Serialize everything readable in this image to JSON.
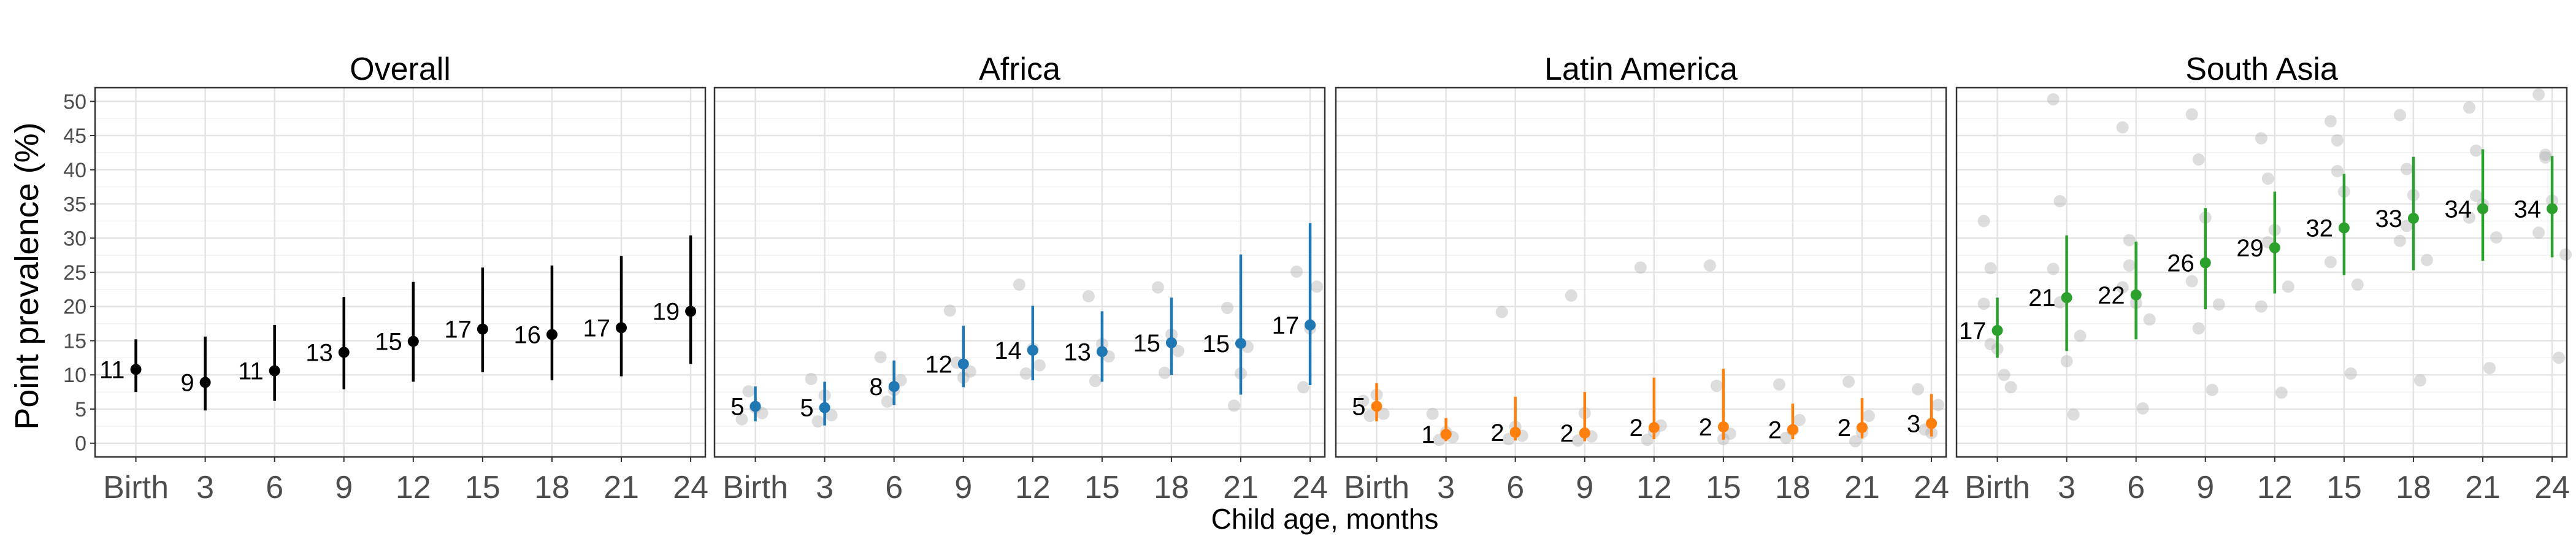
{
  "chart_data": {
    "type": "scatter",
    "ylabel": "Point prevalence (%)",
    "xlabel": "Child age, months",
    "ylim": [
      -2,
      52
    ],
    "yticks": [
      0,
      5,
      10,
      15,
      20,
      25,
      30,
      35,
      40,
      45,
      50
    ],
    "x_categories": [
      "Birth",
      "3",
      "6",
      "9",
      "12",
      "15",
      "18",
      "21",
      "24"
    ],
    "grid": true,
    "panels": [
      {
        "title": "Overall",
        "color": "#000000",
        "points": [
          {
            "x": "Birth",
            "y": 10.8,
            "lo": 7.5,
            "hi": 15.2,
            "label": "11"
          },
          {
            "x": "3",
            "y": 8.9,
            "lo": 4.8,
            "hi": 15.6,
            "label": "9"
          },
          {
            "x": "6",
            "y": 10.6,
            "lo": 6.2,
            "hi": 17.3,
            "label": "11"
          },
          {
            "x": "9",
            "y": 13.3,
            "lo": 7.9,
            "hi": 21.4,
            "label": "13"
          },
          {
            "x": "12",
            "y": 14.9,
            "lo": 9.0,
            "hi": 23.6,
            "label": "15"
          },
          {
            "x": "15",
            "y": 16.7,
            "lo": 10.4,
            "hi": 25.7,
            "label": "17"
          },
          {
            "x": "18",
            "y": 15.9,
            "lo": 9.2,
            "hi": 26.0,
            "label": "16"
          },
          {
            "x": "21",
            "y": 16.9,
            "lo": 9.8,
            "hi": 27.4,
            "label": "17"
          },
          {
            "x": "24",
            "y": 19.3,
            "lo": 11.6,
            "hi": 30.4,
            "label": "19"
          }
        ],
        "studies": []
      },
      {
        "title": "Africa",
        "color": "#1f77b4",
        "points": [
          {
            "x": "Birth",
            "y": 5.4,
            "lo": 3.2,
            "hi": 8.3,
            "label": "5"
          },
          {
            "x": "3",
            "y": 5.2,
            "lo": 2.6,
            "hi": 9.0,
            "label": "5"
          },
          {
            "x": "6",
            "y": 8.3,
            "lo": 5.6,
            "hi": 12.1,
            "label": "8"
          },
          {
            "x": "9",
            "y": 11.6,
            "lo": 8.2,
            "hi": 17.2,
            "label": "12"
          },
          {
            "x": "12",
            "y": 13.6,
            "lo": 9.2,
            "hi": 20.1,
            "label": "14"
          },
          {
            "x": "15",
            "y": 13.4,
            "lo": 9.0,
            "hi": 19.3,
            "label": "13"
          },
          {
            "x": "18",
            "y": 14.7,
            "lo": 10.0,
            "hi": 21.3,
            "label": "15"
          },
          {
            "x": "21",
            "y": 14.6,
            "lo": 7.1,
            "hi": 27.6,
            "label": "15"
          },
          {
            "x": "24",
            "y": 17.3,
            "lo": 8.5,
            "hi": 32.2,
            "label": "17"
          }
        ],
        "studies": [
          [
            3.5,
            7.6,
            5.2,
            4.4
          ],
          [
            9.4,
            3.2,
            7.0,
            4.1
          ],
          [
            12.6,
            6.1,
            7.8,
            9.2
          ],
          [
            19.4,
            11.8,
            9.6,
            10.5
          ],
          [
            23.2,
            10.2,
            13.8,
            11.4
          ],
          [
            21.5,
            9.1,
            14.5,
            12.7
          ],
          [
            22.8,
            10.3,
            15.9,
            13.5
          ],
          [
            19.8,
            5.5,
            10.2,
            14.1
          ],
          [
            25.1,
            8.2,
            16.8,
            22.9
          ]
        ]
      },
      {
        "title": "Latin America",
        "color": "#ff7f0e",
        "points": [
          {
            "x": "Birth",
            "y": 5.4,
            "lo": 3.2,
            "hi": 8.8,
            "label": "5"
          },
          {
            "x": "3",
            "y": 1.3,
            "lo": 0.3,
            "hi": 3.7,
            "label": "1"
          },
          {
            "x": "6",
            "y": 1.6,
            "lo": 0.4,
            "hi": 6.8,
            "label": "2"
          },
          {
            "x": "9",
            "y": 1.5,
            "lo": 0.3,
            "hi": 7.5,
            "label": "2"
          },
          {
            "x": "12",
            "y": 2.3,
            "lo": 0.6,
            "hi": 9.6,
            "label": "2"
          },
          {
            "x": "15",
            "y": 2.4,
            "lo": 0.5,
            "hi": 10.9,
            "label": "2"
          },
          {
            "x": "18",
            "y": 2.0,
            "lo": 0.6,
            "hi": 5.8,
            "label": "2"
          },
          {
            "x": "21",
            "y": 2.3,
            "lo": 0.7,
            "hi": 6.6,
            "label": "2"
          },
          {
            "x": "24",
            "y": 2.9,
            "lo": 1.0,
            "hi": 7.2,
            "label": "3"
          }
        ],
        "studies": [
          [
            6.2,
            4.0,
            7.1,
            4.3
          ],
          [
            4.3,
            0.5,
            1.6,
            0.9
          ],
          [
            19.2,
            0.6,
            2.4,
            1.1
          ],
          [
            21.6,
            0.4,
            4.4,
            1.0
          ],
          [
            25.7,
            0.5,
            1.7,
            2.6
          ],
          [
            26.0,
            8.4,
            0.6,
            1.4
          ],
          [
            8.6,
            0.8,
            1.9,
            3.4
          ],
          [
            9.0,
            0.3,
            1.6,
            4.0
          ],
          [
            7.9,
            2.0,
            1.5,
            5.6
          ]
        ]
      },
      {
        "title": "South Asia",
        "color": "#2ca02c",
        "points": [
          {
            "x": "Birth",
            "y": 16.5,
            "lo": 12.5,
            "hi": 21.3,
            "label": "17"
          },
          {
            "x": "3",
            "y": 21.3,
            "lo": 13.5,
            "hi": 30.4,
            "label": "21"
          },
          {
            "x": "6",
            "y": 21.7,
            "lo": 15.2,
            "hi": 29.5,
            "label": "22"
          },
          {
            "x": "9",
            "y": 26.4,
            "lo": 19.6,
            "hi": 34.4,
            "label": "26"
          },
          {
            "x": "12",
            "y": 28.6,
            "lo": 21.9,
            "hi": 36.8,
            "label": "29"
          },
          {
            "x": "15",
            "y": 31.5,
            "lo": 24.6,
            "hi": 39.4,
            "label": "32"
          },
          {
            "x": "18",
            "y": 32.9,
            "lo": 25.3,
            "hi": 41.9,
            "label": "33"
          },
          {
            "x": "21",
            "y": 34.3,
            "lo": 26.7,
            "hi": 43.0,
            "label": "34"
          },
          {
            "x": "24",
            "y": 34.3,
            "lo": 27.2,
            "hi": 42.0,
            "label": "34"
          }
        ],
        "studies": [
          [
            32.5,
            25.6,
            13.8,
            10.0,
            8.2,
            20.4,
            14.5
          ],
          [
            50.3,
            35.4,
            12.0,
            4.2,
            15.7,
            25.5,
            20.6
          ],
          [
            46.2,
            29.7,
            20.5,
            5.1,
            18.1,
            22.8,
            26.0
          ],
          [
            48.1,
            41.5,
            33.0,
            7.8,
            20.3,
            23.7,
            16.8
          ],
          [
            44.6,
            38.7,
            31.2,
            7.4,
            22.9,
            20.0,
            29.4
          ],
          [
            47.1,
            44.3,
            36.8,
            10.2,
            23.2,
            26.5,
            39.8
          ],
          [
            48.0,
            40.1,
            36.3,
            9.2,
            26.8,
            29.6,
            31.8
          ],
          [
            49.1,
            42.8,
            34.9,
            11.0,
            30.1,
            33.0,
            36.2
          ],
          [
            51.0,
            41.8,
            35.5,
            12.5,
            27.6,
            30.8,
            42.2
          ]
        ]
      }
    ]
  }
}
